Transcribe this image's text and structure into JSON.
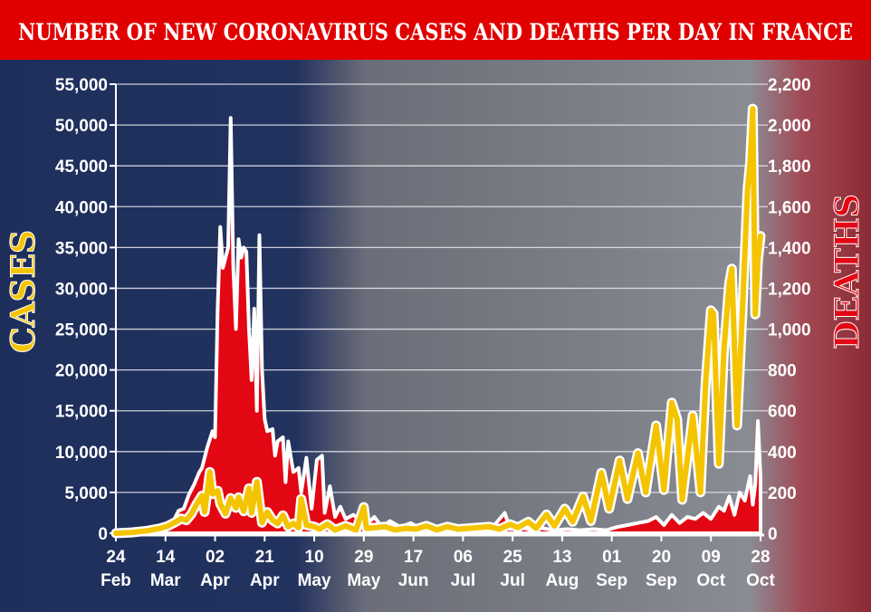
{
  "chart_data": {
    "type": "line",
    "title": "NUMBER OF NEW CORONAVIRUS CASES AND DEATHS PER DAY IN FRANCE",
    "ylabel_left": "CASES",
    "ylabel_right": "DEATHS",
    "ylim_left": [
      0,
      55000
    ],
    "ylim_right": [
      0,
      2200
    ],
    "yticks_left": [
      "0",
      "5,000",
      "10,000",
      "15,000",
      "20,000",
      "25,000",
      "30,000",
      "35,000",
      "40,000",
      "45,000",
      "50,000",
      "55,000"
    ],
    "yticks_right": [
      "0",
      "200",
      "400",
      "600",
      "800",
      "1,000",
      "1,200",
      "1,400",
      "1,600",
      "1,800",
      "2,000",
      "2,200"
    ],
    "xticks": [
      {
        "day": "24",
        "month": "Feb"
      },
      {
        "day": "14",
        "month": "Mar"
      },
      {
        "day": "02",
        "month": "Apr"
      },
      {
        "day": "21",
        "month": "Apr"
      },
      {
        "day": "10",
        "month": "May"
      },
      {
        "day": "29",
        "month": "May"
      },
      {
        "day": "17",
        "month": "Jun"
      },
      {
        "day": "06",
        "month": "Jul"
      },
      {
        "day": "25",
        "month": "Jul"
      },
      {
        "day": "13",
        "month": "Aug"
      },
      {
        "day": "01",
        "month": "Sep"
      },
      {
        "day": "20",
        "month": "Sep"
      },
      {
        "day": "09",
        "month": "Oct"
      },
      {
        "day": "28",
        "month": "Oct"
      }
    ],
    "grid": true,
    "colors": {
      "cases": "#f5c400",
      "deaths": "#e30613",
      "title_bar": "#e00000",
      "background": "#1f2f5c"
    },
    "series": [
      {
        "key": "cases",
        "axis": "left",
        "points": [
          [
            "24 Feb",
            0
          ],
          [
            "01 Mar",
            100
          ],
          [
            "07 Mar",
            300
          ],
          [
            "12 Mar",
            600
          ],
          [
            "15 Mar",
            900
          ],
          [
            "18 Mar",
            1400
          ],
          [
            "20 Mar",
            1800
          ],
          [
            "22 Mar",
            1600
          ],
          [
            "24 Mar",
            2400
          ],
          [
            "26 Mar",
            3600
          ],
          [
            "28 Mar",
            4600
          ],
          [
            "29 Mar",
            2600
          ],
          [
            "31 Mar",
            7500
          ],
          [
            "01 Apr",
            4800
          ],
          [
            "03 Apr",
            5200
          ],
          [
            "04 Apr",
            3600
          ],
          [
            "06 Apr",
            2400
          ],
          [
            "08 Apr",
            4300
          ],
          [
            "10 Apr",
            3100
          ],
          [
            "11 Apr",
            4400
          ],
          [
            "13 Apr",
            2700
          ],
          [
            "15 Apr",
            5500
          ],
          [
            "16 Apr",
            2500
          ],
          [
            "18 Apr",
            6300
          ],
          [
            "20 Apr",
            1300
          ],
          [
            "22 Apr",
            2600
          ],
          [
            "24 Apr",
            1600
          ],
          [
            "26 Apr",
            1200
          ],
          [
            "28 Apr",
            2200
          ],
          [
            "30 Apr",
            800
          ],
          [
            "02 May",
            1200
          ],
          [
            "04 May",
            700
          ],
          [
            "05 May",
            4200
          ],
          [
            "07 May",
            1000
          ],
          [
            "10 May",
            800
          ],
          [
            "12 May",
            500
          ],
          [
            "15 May",
            1100
          ],
          [
            "18 May",
            400
          ],
          [
            "22 May",
            900
          ],
          [
            "26 May",
            400
          ],
          [
            "29 May",
            3200
          ],
          [
            "30 May",
            600
          ],
          [
            "03 Jun",
            700
          ],
          [
            "06 Jun",
            800
          ],
          [
            "10 Jun",
            400
          ],
          [
            "14 Jun",
            600
          ],
          [
            "18 Jun",
            500
          ],
          [
            "22 Jun",
            900
          ],
          [
            "26 Jun",
            400
          ],
          [
            "30 Jun",
            800
          ],
          [
            "04 Jul",
            500
          ],
          [
            "08 Jul",
            600
          ],
          [
            "12 Jul",
            700
          ],
          [
            "16 Jul",
            800
          ],
          [
            "20 Jul",
            500
          ],
          [
            "24 Jul",
            1100
          ],
          [
            "27 Jul",
            700
          ],
          [
            "31 Jul",
            1400
          ],
          [
            "03 Aug",
            600
          ],
          [
            "07 Aug",
            2300
          ],
          [
            "10 Aug",
            900
          ],
          [
            "14 Aug",
            3000
          ],
          [
            "17 Aug",
            1400
          ],
          [
            "21 Aug",
            4500
          ],
          [
            "24 Aug",
            1500
          ],
          [
            "28 Aug",
            7400
          ],
          [
            "31 Aug",
            3000
          ],
          [
            "04 Sep",
            8900
          ],
          [
            "07 Sep",
            4200
          ],
          [
            "11 Sep",
            9800
          ],
          [
            "14 Sep",
            5000
          ],
          [
            "18 Sep",
            13200
          ],
          [
            "21 Sep",
            5300
          ],
          [
            "24 Sep",
            16000
          ],
          [
            "26 Sep",
            14000
          ],
          [
            "28 Sep",
            4100
          ],
          [
            "02 Oct",
            14400
          ],
          [
            "05 Oct",
            5000
          ],
          [
            "07 Oct",
            18700
          ],
          [
            "09 Oct",
            27300
          ],
          [
            "10 Oct",
            26900
          ],
          [
            "12 Oct",
            8500
          ],
          [
            "14 Oct",
            22500
          ],
          [
            "16 Oct",
            30600
          ],
          [
            "17 Oct",
            32400
          ],
          [
            "19 Oct",
            13200
          ],
          [
            "21 Oct",
            26700
          ],
          [
            "23 Oct",
            42000
          ],
          [
            "24 Oct",
            45400
          ],
          [
            "25 Oct",
            52000
          ],
          [
            "26 Oct",
            26800
          ],
          [
            "27 Oct",
            33400
          ],
          [
            "28 Oct",
            36400
          ]
        ]
      },
      {
        "key": "deaths",
        "axis": "right",
        "points": [
          [
            "24 Feb",
            0
          ],
          [
            "01 Mar",
            1
          ],
          [
            "08 Mar",
            3
          ],
          [
            "12 Mar",
            15
          ],
          [
            "15 Mar",
            30
          ],
          [
            "17 Mar",
            60
          ],
          [
            "19 Mar",
            110
          ],
          [
            "21 Mar",
            120
          ],
          [
            "23 Mar",
            190
          ],
          [
            "25 Mar",
            240
          ],
          [
            "27 Mar",
            300
          ],
          [
            "28 Mar",
            320
          ],
          [
            "30 Mar",
            420
          ],
          [
            "01 Apr",
            500
          ],
          [
            "02 Apr",
            470
          ],
          [
            "03 Apr",
            1100
          ],
          [
            "04 Apr",
            1500
          ],
          [
            "05 Apr",
            1300
          ],
          [
            "07 Apr",
            1400
          ],
          [
            "08 Apr",
            2035
          ],
          [
            "09 Apr",
            1300
          ],
          [
            "10 Apr",
            1000
          ],
          [
            "11 Apr",
            1440
          ],
          [
            "12 Apr",
            1350
          ],
          [
            "13 Apr",
            1400
          ],
          [
            "14 Apr",
            1380
          ],
          [
            "15 Apr",
            1000
          ],
          [
            "16 Apr",
            750
          ],
          [
            "17 Apr",
            1100
          ],
          [
            "18 Apr",
            600
          ],
          [
            "19 Apr",
            1460
          ],
          [
            "20 Apr",
            800
          ],
          [
            "21 Apr",
            560
          ],
          [
            "22 Apr",
            500
          ],
          [
            "24 Apr",
            510
          ],
          [
            "25 Apr",
            380
          ],
          [
            "26 Apr",
            450
          ],
          [
            "28 Apr",
            470
          ],
          [
            "29 Apr",
            250
          ],
          [
            "30 Apr",
            450
          ],
          [
            "02 May",
            300
          ],
          [
            "04 May",
            320
          ],
          [
            "05 May",
            200
          ],
          [
            "07 May",
            370
          ],
          [
            "09 May",
            120
          ],
          [
            "11 May",
            360
          ],
          [
            "13 May",
            380
          ],
          [
            "14 May",
            100
          ],
          [
            "16 May",
            230
          ],
          [
            "18 May",
            80
          ],
          [
            "20 May",
            130
          ],
          [
            "22 May",
            70
          ],
          [
            "25 May",
            90
          ],
          [
            "28 May",
            60
          ],
          [
            "30 May",
            40
          ],
          [
            "02 Jun",
            80
          ],
          [
            "05 Jun",
            30
          ],
          [
            "08 Jun",
            60
          ],
          [
            "12 Jun",
            30
          ],
          [
            "16 Jun",
            50
          ],
          [
            "20 Jun",
            20
          ],
          [
            "24 Jun",
            30
          ],
          [
            "28 Jun",
            15
          ],
          [
            "02 Jul",
            40
          ],
          [
            "06 Jul",
            20
          ],
          [
            "10 Jul",
            30
          ],
          [
            "14 Jul",
            20
          ],
          [
            "18 Jul",
            40
          ],
          [
            "22 Jul",
            100
          ],
          [
            "24 Jul",
            20
          ],
          [
            "28 Jul",
            30
          ],
          [
            "01 Aug",
            15
          ],
          [
            "05 Aug",
            25
          ],
          [
            "10 Aug",
            15
          ],
          [
            "15 Aug",
            20
          ],
          [
            "20 Aug",
            15
          ],
          [
            "25 Aug",
            20
          ],
          [
            "30 Aug",
            15
          ],
          [
            "03 Sep",
            30
          ],
          [
            "07 Sep",
            40
          ],
          [
            "11 Sep",
            50
          ],
          [
            "15 Sep",
            60
          ],
          [
            "18 Sep",
            80
          ],
          [
            "21 Sep",
            40
          ],
          [
            "24 Sep",
            90
          ],
          [
            "27 Sep",
            50
          ],
          [
            "30 Sep",
            80
          ],
          [
            "03 Oct",
            70
          ],
          [
            "06 Oct",
            100
          ],
          [
            "09 Oct",
            70
          ],
          [
            "12 Oct",
            130
          ],
          [
            "14 Oct",
            110
          ],
          [
            "16 Oct",
            180
          ],
          [
            "18 Oct",
            90
          ],
          [
            "20 Oct",
            200
          ],
          [
            "22 Oct",
            160
          ],
          [
            "24 Oct",
            280
          ],
          [
            "25 Oct",
            140
          ],
          [
            "26 Oct",
            240
          ],
          [
            "27 Oct",
            550
          ],
          [
            "28 Oct",
            270
          ]
        ]
      }
    ]
  }
}
